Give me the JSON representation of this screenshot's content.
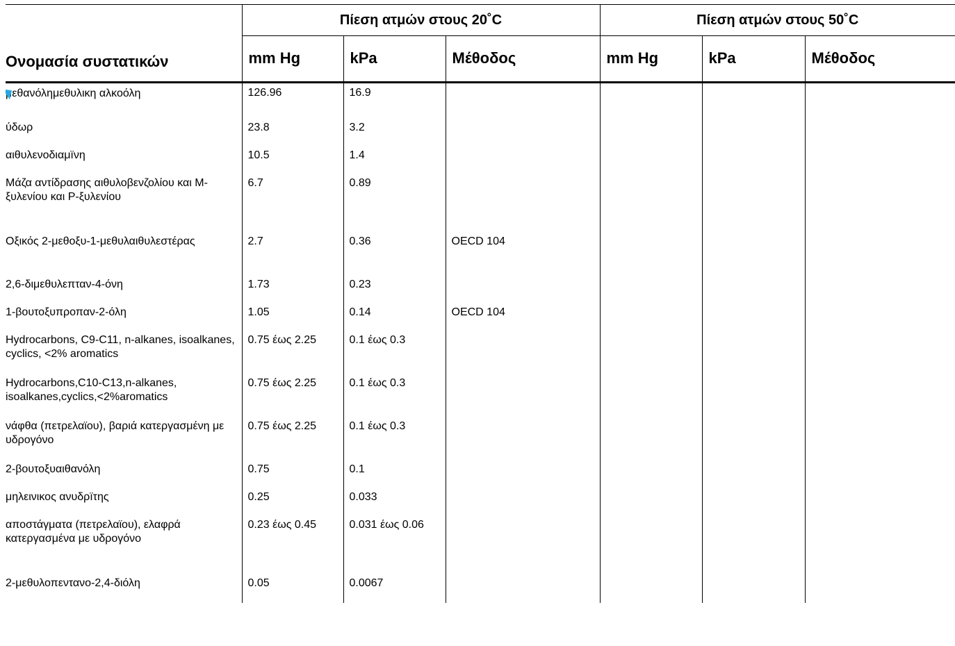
{
  "table": {
    "group_20": "Πίεση ατμών στους 20˚C",
    "group_50": "Πίεση ατμών στους 50˚C",
    "col_name": "Ονομασία συστατικών",
    "col_mm": "mm Hg",
    "col_kpa": "kPa",
    "col_method": "Μέθοδος",
    "rows": [
      {
        "name": "μεθανόλημεθυλικη αλκοόλη",
        "mm20": "126.96",
        "kpa20": "16.9",
        "method20": "",
        "mm50": "",
        "kpa50": "",
        "method50": ""
      },
      {
        "name": "ύδωρ",
        "mm20": "23.8",
        "kpa20": "3.2",
        "method20": "",
        "mm50": "",
        "kpa50": "",
        "method50": ""
      },
      {
        "name": "αιθυλενοδιαμïνη",
        "mm20": "10.5",
        "kpa20": "1.4",
        "method20": "",
        "mm50": "",
        "kpa50": "",
        "method50": ""
      },
      {
        "name": "Μάζα αντίδρασης αιθυλοβενζολίου και Μ-ξυλενίου και Ρ-ξυλενίου",
        "mm20": "6.7",
        "kpa20": "0.89",
        "method20": "",
        "mm50": "",
        "kpa50": "",
        "method50": ""
      },
      {
        "name": "Οξικός 2-μεθοξυ-1-μεθυλαιθυλεστέρας",
        "mm20": "2.7",
        "kpa20": "0.36",
        "method20": "OECD 104",
        "mm50": "",
        "kpa50": "",
        "method50": ""
      },
      {
        "name": "2,6-διμεθυλεπταν-4-όνη",
        "mm20": "1.73",
        "kpa20": "0.23",
        "method20": "",
        "mm50": "",
        "kpa50": "",
        "method50": ""
      },
      {
        "name": "1-βουτοξυπροπαν-2-όλη",
        "mm20": "1.05",
        "kpa20": "0.14",
        "method20": "OECD 104",
        "mm50": "",
        "kpa50": "",
        "method50": ""
      },
      {
        "name": "Hydrocarbons, C9-C11, n-alkanes, isoalkanes, cyclics, <2% aromatics",
        "mm20": "0.75 έως 2.25",
        "kpa20": "0.1 έως 0.3",
        "method20": "",
        "mm50": "",
        "kpa50": "",
        "method50": ""
      },
      {
        "name": "Hydrocarbons,C10-C13,n-alkanes, isoalkanes,cyclics,<2%aromatics",
        "mm20": "0.75 έως 2.25",
        "kpa20": "0.1 έως 0.3",
        "method20": "",
        "mm50": "",
        "kpa50": "",
        "method50": ""
      },
      {
        "name": "νάφθα (πετρελαϊου), βαριά κατεργασμένη με υδρογόνο",
        "mm20": "0.75 έως 2.25",
        "kpa20": "0.1 έως 0.3",
        "method20": "",
        "mm50": "",
        "kpa50": "",
        "method50": ""
      },
      {
        "name": "2-βουτοξυαιθανόλη",
        "mm20": "0.75",
        "kpa20": "0.1",
        "method20": "",
        "mm50": "",
        "kpa50": "",
        "method50": ""
      },
      {
        "name": "μηλεινικος ανυδρïτης",
        "mm20": "0.25",
        "kpa20": "0.033",
        "method20": "",
        "mm50": "",
        "kpa50": "",
        "method50": ""
      },
      {
        "name": "αποστάγματα (πετρελαϊου), ελαφρά κατεργασμένα με υδρογόνο",
        "mm20": "0.23 έως 0.45",
        "kpa20": "0.031 έως 0.06",
        "method20": "",
        "mm50": "",
        "kpa50": "",
        "method50": ""
      },
      {
        "name": "2-μεθυλοπεντανο-2,4-διόλη",
        "mm20": "0.05",
        "kpa20": "0.0067",
        "method20": "",
        "mm50": "",
        "kpa50": "",
        "method50": ""
      }
    ]
  }
}
